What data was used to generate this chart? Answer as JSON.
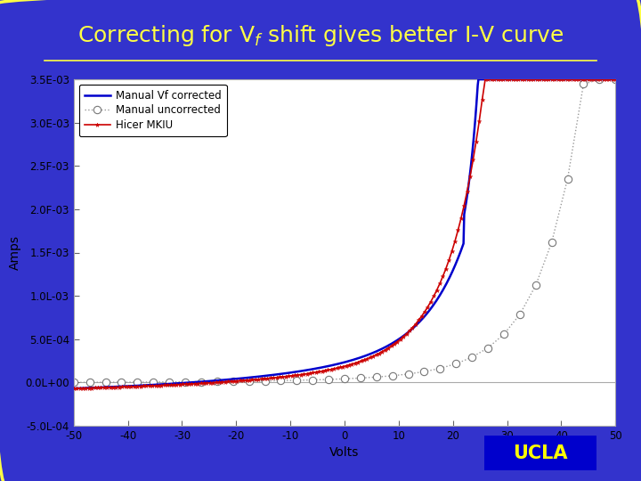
{
  "title": "Correcting for V$_f$ shift gives better I-V curve",
  "xlabel": "Volts",
  "ylabel": "Amps",
  "xlim": [
    -50,
    50
  ],
  "ylim": [
    -0.0005,
    0.0035
  ],
  "yticks": [
    -0.0005,
    0.0,
    0.0005,
    0.001,
    0.0015,
    0.002,
    0.0025,
    0.003,
    0.0035
  ],
  "ytick_labels": [
    "-5.0L-04",
    "0.0L+00",
    "5.0E-04",
    "1.0L-03",
    "1.5F-03",
    "2.0F-03",
    "2.5F-03",
    "3.0E-03",
    "3.5E-03"
  ],
  "xticks": [
    -50,
    -40,
    -30,
    -20,
    -10,
    0,
    10,
    20,
    30,
    40,
    50
  ],
  "background_outer": "#3333cc",
  "background_inner": "#ffffff",
  "title_color": "#ffff44",
  "title_fontsize": 18,
  "underline_color": "#ffff44",
  "ucla_bg": "#0000cc",
  "ucla_text": "#ffff00",
  "legend_labels": [
    "Manual Vf corrected",
    "Manual uncorrected",
    "Hicer MKIU"
  ],
  "legend_colors": [
    "#0000cc",
    "#888888",
    "#cc0000"
  ],
  "plot_border_color": "#aaaaaa"
}
